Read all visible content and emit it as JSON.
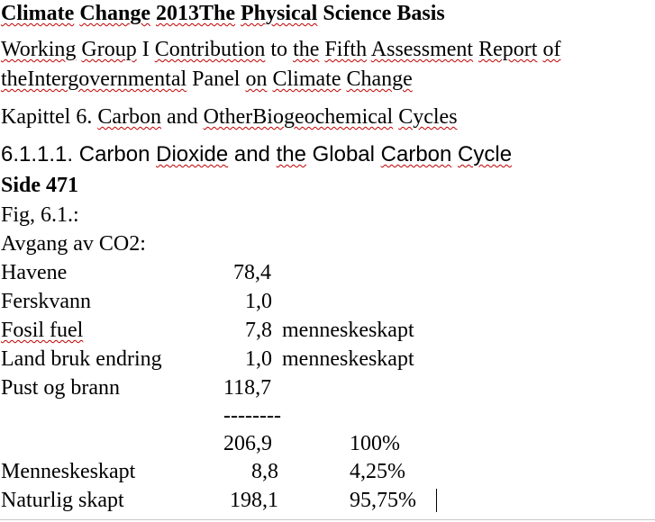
{
  "doc": {
    "title_parts": [
      "Climate",
      "Change",
      "2013The",
      "Physical",
      "Science",
      "Basis"
    ],
    "wg_line1_parts": [
      "Working",
      "Group",
      "I",
      "Contribution",
      "to",
      "the",
      "Fifth",
      "Assessment",
      "Report",
      "of"
    ],
    "wg_line2_parts": [
      "theIntergovernmental",
      "Panel",
      "on",
      "Climate",
      "Change"
    ],
    "chapter_parts": [
      "Kapittel",
      "6.",
      "Carbon",
      "and",
      "OtherBiogeochemical",
      "Cycles"
    ],
    "section_parts": [
      "6.1.1.1.",
      "Carbon",
      "Dioxide",
      "and",
      "the",
      "Global",
      "Carbon",
      "Cycle"
    ],
    "side": "Side 471",
    "fig": "Fig, 6.1.:",
    "avgang": "Avgang av CO2:",
    "rows": [
      {
        "label": "Havene",
        "value": "78,4",
        "note": ""
      },
      {
        "label": "Ferskvann",
        "value": "1,0",
        "note": ""
      },
      {
        "label": "Fosil fuel",
        "value": "7,8",
        "note": "menneskeskapt"
      },
      {
        "label": "Land bruk endring",
        "value": "1,0",
        "note": "menneskeskapt"
      },
      {
        "label": "Pust og brann",
        "value": "118,7",
        "note": ""
      }
    ],
    "separator": "--------",
    "total": {
      "value": "206,9",
      "percent": "100%"
    },
    "menneskeskapt": {
      "label": "Menneskeskapt",
      "value": "8,8",
      "percent": "4,25%"
    },
    "naturlig": {
      "label": "Naturlig skapt",
      "value": "198,1",
      "percent": "95,75%"
    }
  }
}
